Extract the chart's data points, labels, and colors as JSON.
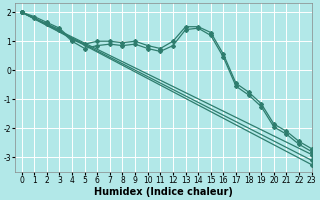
{
  "xlabel": "Humidex (Indice chaleur)",
  "background_color": "#b2e8e8",
  "grid_color": "#ffffff",
  "line_color": "#2e7d6e",
  "xlim": [
    -0.5,
    23
  ],
  "ylim": [
    -3.5,
    2.3
  ],
  "yticks": [
    -3,
    -2,
    -1,
    0,
    1,
    2
  ],
  "xticks": [
    0,
    1,
    2,
    3,
    4,
    5,
    6,
    7,
    8,
    9,
    10,
    11,
    12,
    13,
    14,
    15,
    16,
    17,
    18,
    19,
    20,
    21,
    22,
    23
  ],
  "lines": [
    {
      "x": [
        0,
        1,
        2,
        3,
        4,
        5,
        6,
        7,
        8,
        9,
        10,
        11,
        12,
        13,
        14,
        15,
        16,
        17,
        18,
        19,
        20,
        21,
        22,
        23
      ],
      "y": [
        2.0,
        1.85,
        1.65,
        1.45,
        1.05,
        0.9,
        1.0,
        1.0,
        0.95,
        1.0,
        0.85,
        0.75,
        1.0,
        1.5,
        1.5,
        1.3,
        0.55,
        -0.45,
        -0.75,
        -1.15,
        -1.85,
        -2.1,
        -2.45,
        -2.7
      ]
    },
    {
      "x": [
        0,
        1,
        2,
        3,
        4,
        5,
        6,
        7,
        8,
        9,
        10,
        11,
        12,
        13,
        14,
        15,
        16,
        17,
        18,
        19,
        20,
        21,
        22,
        23
      ],
      "y": [
        2.0,
        1.8,
        1.6,
        1.4,
        1.0,
        0.75,
        0.85,
        0.9,
        0.85,
        0.9,
        0.75,
        0.65,
        0.85,
        1.4,
        1.45,
        1.2,
        0.45,
        -0.55,
        -0.85,
        -1.25,
        -1.95,
        -2.2,
        -2.55,
        -2.8
      ]
    },
    {
      "x": [
        0,
        23
      ],
      "y": [
        2.0,
        -2.9
      ]
    },
    {
      "x": [
        0,
        23
      ],
      "y": [
        2.0,
        -3.1
      ]
    },
    {
      "x": [
        0,
        23
      ],
      "y": [
        2.0,
        -3.25
      ]
    }
  ],
  "marker": "D",
  "markersize": 2.0,
  "linewidth": 0.9,
  "xlabel_fontsize": 7,
  "tick_fontsize": 5.5
}
